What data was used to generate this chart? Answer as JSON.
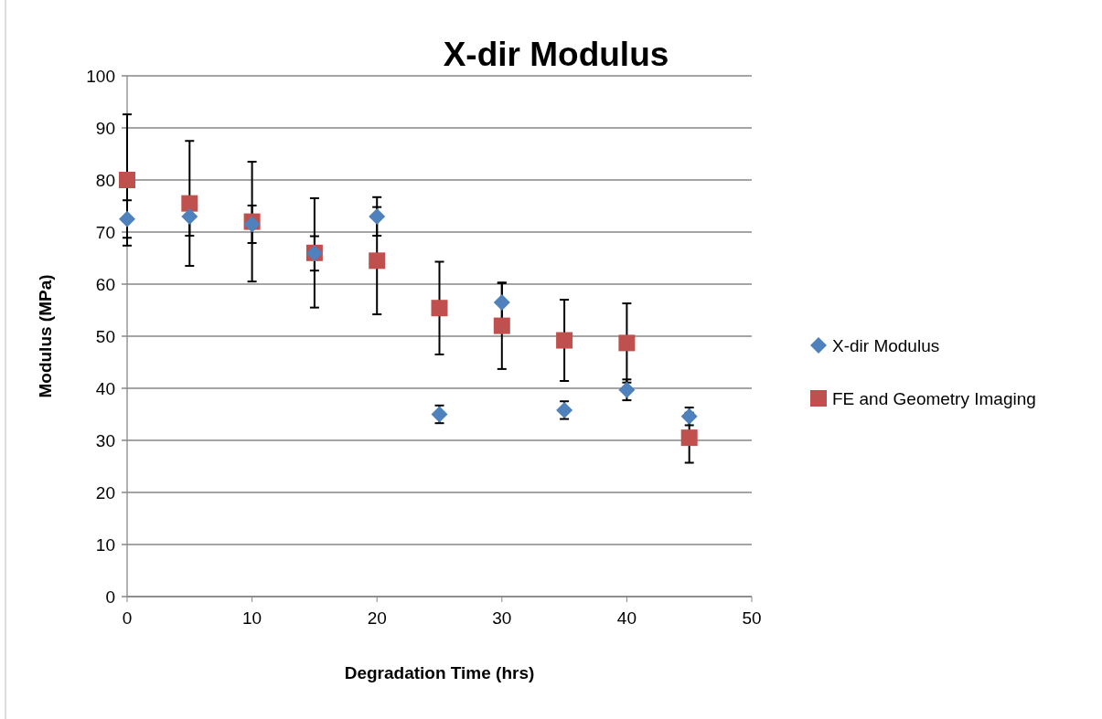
{
  "chart_data": {
    "type": "scatter",
    "title": "X-dir Modulus",
    "xlabel": "Degradation Time (hrs)",
    "ylabel": "Modulus (MPa)",
    "xlim": [
      0,
      50
    ],
    "xticks": [
      0,
      10,
      20,
      30,
      40,
      50
    ],
    "ylim": [
      0,
      100
    ],
    "yticks": [
      0,
      10,
      20,
      30,
      40,
      50,
      60,
      70,
      80,
      90,
      100
    ],
    "grid": "y",
    "legend": "right",
    "series": [
      {
        "name": "X-dir Modulus",
        "color": "#4f81bd",
        "marker": "diamond",
        "x": [
          0,
          5,
          10,
          15,
          20,
          25,
          30,
          35,
          40,
          45
        ],
        "values": [
          72.5,
          73,
          71.5,
          65.9,
          73,
          35,
          56.5,
          35.8,
          39.7,
          34.6
        ],
        "errors": [
          3.6,
          3.7,
          3.6,
          3.3,
          3.7,
          1.7,
          3.7,
          1.7,
          2,
          1.7
        ]
      },
      {
        "name": "FE and Geometry Imaging",
        "color": "#c0504d",
        "marker": "square",
        "x": [
          0,
          5,
          10,
          15,
          20,
          25,
          30,
          35,
          40,
          45
        ],
        "values": [
          80,
          75.5,
          72,
          66,
          64.5,
          55.4,
          52,
          49.2,
          48.7,
          30.5
        ],
        "errors": [
          12.6,
          12,
          11.5,
          10.5,
          10.3,
          8.9,
          8.3,
          7.8,
          7.6,
          4.8
        ]
      }
    ]
  }
}
